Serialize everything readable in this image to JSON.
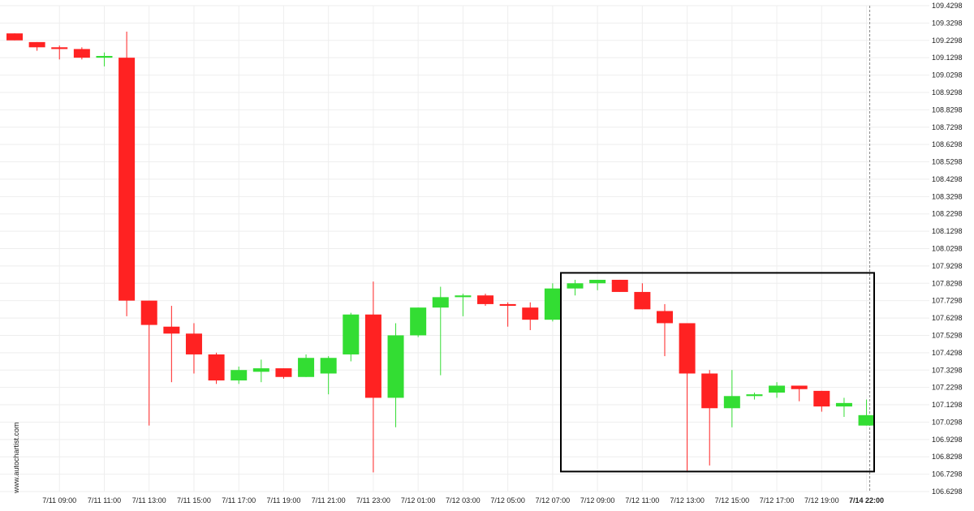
{
  "chart_data": {
    "type": "candlestick",
    "watermark": "www.autochartist.com",
    "colors": {
      "up": "#33dd33",
      "down": "#ff2222",
      "box": "#000000",
      "grid": "#eeeeee",
      "vline": "#888888"
    },
    "grid": true,
    "ylim": [
      106.6298,
      109.4298
    ],
    "y_ticks": [
      "109.4298",
      "109.3298",
      "109.2298",
      "109.1298",
      "109.0298",
      "108.9298",
      "108.8298",
      "108.7298",
      "108.6298",
      "108.5298",
      "108.4298",
      "108.3298",
      "108.2298",
      "108.1298",
      "108.0298",
      "107.9298",
      "107.8298",
      "107.7298",
      "107.6298",
      "107.5298",
      "107.4298",
      "107.3298",
      "107.2298",
      "107.1298",
      "107.0298",
      "106.9298",
      "106.8298",
      "106.7298",
      "106.6298"
    ],
    "x_ticks": [
      {
        "label": "7/11 09:00",
        "index": 2
      },
      {
        "label": "7/11 11:00",
        "index": 4
      },
      {
        "label": "7/11 13:00",
        "index": 6
      },
      {
        "label": "7/11 15:00",
        "index": 8
      },
      {
        "label": "7/11 17:00",
        "index": 10
      },
      {
        "label": "7/11 19:00",
        "index": 12
      },
      {
        "label": "7/11 21:00",
        "index": 14
      },
      {
        "label": "7/11 23:00",
        "index": 16
      },
      {
        "label": "7/12 01:00",
        "index": 18
      },
      {
        "label": "7/12 03:00",
        "index": 20
      },
      {
        "label": "7/12 05:00",
        "index": 22
      },
      {
        "label": "7/12 07:00",
        "index": 24
      },
      {
        "label": "7/12 09:00",
        "index": 26
      },
      {
        "label": "7/12 11:00",
        "index": 28
      },
      {
        "label": "7/12 13:00",
        "index": 30
      },
      {
        "label": "7/12 15:00",
        "index": 32
      },
      {
        "label": "7/12 17:00",
        "index": 34
      },
      {
        "label": "7/12 19:00",
        "index": 36
      },
      {
        "label": "7/14 22:00",
        "index": 38,
        "bold": true
      }
    ],
    "candles": [
      {
        "o": 109.27,
        "h": 109.27,
        "l": 109.23,
        "c": 109.23
      },
      {
        "o": 109.22,
        "h": 109.22,
        "l": 109.17,
        "c": 109.19
      },
      {
        "o": 109.19,
        "h": 109.2,
        "l": 109.12,
        "c": 109.18
      },
      {
        "o": 109.18,
        "h": 109.19,
        "l": 109.12,
        "c": 109.13
      },
      {
        "o": 109.13,
        "h": 109.16,
        "l": 109.08,
        "c": 109.14
      },
      {
        "o": 109.13,
        "h": 109.28,
        "l": 107.64,
        "c": 107.73
      },
      {
        "o": 107.73,
        "h": 107.73,
        "l": 107.01,
        "c": 107.59
      },
      {
        "o": 107.58,
        "h": 107.7,
        "l": 107.26,
        "c": 107.54
      },
      {
        "o": 107.54,
        "h": 107.6,
        "l": 107.31,
        "c": 107.42
      },
      {
        "o": 107.42,
        "h": 107.43,
        "l": 107.25,
        "c": 107.27
      },
      {
        "o": 107.27,
        "h": 107.35,
        "l": 107.25,
        "c": 107.33
      },
      {
        "o": 107.32,
        "h": 107.39,
        "l": 107.26,
        "c": 107.34
      },
      {
        "o": 107.34,
        "h": 107.34,
        "l": 107.28,
        "c": 107.29
      },
      {
        "o": 107.29,
        "h": 107.42,
        "l": 107.29,
        "c": 107.4
      },
      {
        "o": 107.31,
        "h": 107.41,
        "l": 107.19,
        "c": 107.4
      },
      {
        "o": 107.42,
        "h": 107.66,
        "l": 107.38,
        "c": 107.65
      },
      {
        "o": 107.65,
        "h": 107.84,
        "l": 106.74,
        "c": 107.17
      },
      {
        "o": 107.17,
        "h": 107.6,
        "l": 107.0,
        "c": 107.53
      },
      {
        "o": 107.53,
        "h": 107.69,
        "l": 107.52,
        "c": 107.69
      },
      {
        "o": 107.69,
        "h": 107.81,
        "l": 107.3,
        "c": 107.75
      },
      {
        "o": 107.75,
        "h": 107.77,
        "l": 107.64,
        "c": 107.76
      },
      {
        "o": 107.76,
        "h": 107.77,
        "l": 107.7,
        "c": 107.71
      },
      {
        "o": 107.71,
        "h": 107.72,
        "l": 107.58,
        "c": 107.7
      },
      {
        "o": 107.69,
        "h": 107.72,
        "l": 107.56,
        "c": 107.62
      },
      {
        "o": 107.62,
        "h": 107.83,
        "l": 107.61,
        "c": 107.8
      },
      {
        "o": 107.8,
        "h": 107.85,
        "l": 107.76,
        "c": 107.83
      },
      {
        "o": 107.83,
        "h": 107.85,
        "l": 107.79,
        "c": 107.85
      },
      {
        "o": 107.85,
        "h": 107.85,
        "l": 107.78,
        "c": 107.78
      },
      {
        "o": 107.78,
        "h": 107.83,
        "l": 107.68,
        "c": 107.68
      },
      {
        "o": 107.67,
        "h": 107.71,
        "l": 107.41,
        "c": 107.6
      },
      {
        "o": 107.6,
        "h": 107.6,
        "l": 106.75,
        "c": 107.31
      },
      {
        "o": 107.31,
        "h": 107.33,
        "l": 106.78,
        "c": 107.11
      },
      {
        "o": 107.11,
        "h": 107.33,
        "l": 107.0,
        "c": 107.18
      },
      {
        "o": 107.18,
        "h": 107.2,
        "l": 107.16,
        "c": 107.19
      },
      {
        "o": 107.2,
        "h": 107.26,
        "l": 107.17,
        "c": 107.24
      },
      {
        "o": 107.24,
        "h": 107.24,
        "l": 107.15,
        "c": 107.22
      },
      {
        "o": 107.21,
        "h": 107.21,
        "l": 107.09,
        "c": 107.12
      },
      {
        "o": 107.12,
        "h": 107.17,
        "l": 107.06,
        "c": 107.14
      },
      {
        "o": 107.01,
        "h": 107.16,
        "l": 107.01,
        "c": 107.07
      }
    ],
    "pattern_box": {
      "start_index": 25,
      "end_index": 40,
      "top": 107.89,
      "bottom": 106.745
    },
    "current_time_index": 38
  }
}
